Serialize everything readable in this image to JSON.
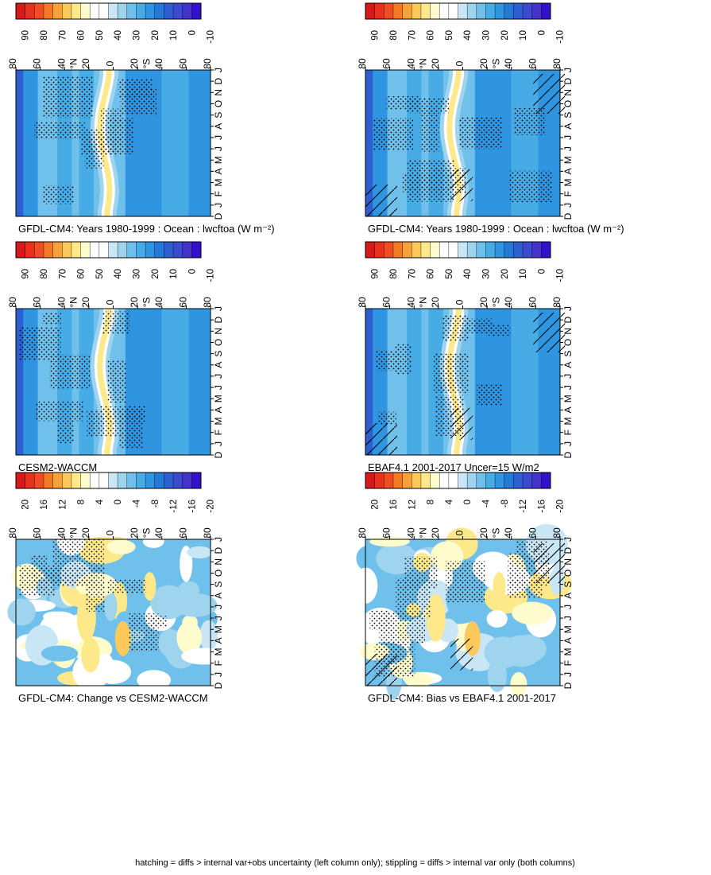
{
  "footer_caption": "hatching = diffs > internal var+obs uncertainty (left column only); stippling = diffs > internal var only (both columns)",
  "chart_data": [
    {
      "type": "heatmap",
      "title": "GFDL-CM4: Years 1980-1999 : Ocean : lwcftoa (W m⁻²)",
      "kind": "clim",
      "x_ticks": [
        "D",
        "J",
        "F",
        "M",
        "A",
        "M",
        "J",
        "J",
        "A",
        "S",
        "O",
        "N",
        "D",
        "J"
      ],
      "y_ticks": [
        "80",
        "60",
        "40",
        "20",
        "0",
        "20",
        "40",
        "60",
        "80"
      ],
      "y_hemi": [
        "°N",
        "°S"
      ],
      "colorbar": {
        "labels": [
          "90",
          "80",
          "70",
          "60",
          "50",
          "40",
          "30",
          "20",
          "10",
          "0",
          "-10"
        ],
        "colors": [
          "#d7191c",
          "#e8301f",
          "#f04d22",
          "#f57a26",
          "#f9a23a",
          "#fcc95a",
          "#fde98a",
          "#fefbcd",
          "#ffffff",
          "#ffffff",
          "#c8e6f5",
          "#9fd4ef",
          "#6fc0ea",
          "#47ace6",
          "#2f95e0",
          "#2478d6",
          "#2d5fd0",
          "#3b4ad0",
          "#4433c8",
          "#3311cc"
        ]
      },
      "stipple": true,
      "hatch": true
    },
    {
      "type": "heatmap",
      "title": "GFDL-CM4: Years 1980-1999 : Ocean : lwcftoa (W m⁻²)",
      "kind": "clim",
      "x_ticks": [
        "D",
        "J",
        "F",
        "M",
        "A",
        "M",
        "J",
        "J",
        "A",
        "S",
        "O",
        "N",
        "D",
        "J"
      ],
      "y_ticks": [
        "80",
        "60",
        "40",
        "20",
        "0",
        "20",
        "40",
        "60",
        "80"
      ],
      "y_hemi": [
        "°N",
        "°S"
      ],
      "colorbar": {
        "labels": [
          "90",
          "80",
          "70",
          "60",
          "50",
          "40",
          "30",
          "20",
          "10",
          "0",
          "-10"
        ],
        "colors": [
          "#d7191c",
          "#e8301f",
          "#f04d22",
          "#f57a26",
          "#f9a23a",
          "#fcc95a",
          "#fde98a",
          "#fefbcd",
          "#ffffff",
          "#ffffff",
          "#c8e6f5",
          "#9fd4ef",
          "#6fc0ea",
          "#47ace6",
          "#2f95e0",
          "#2478d6",
          "#2d5fd0",
          "#3b4ad0",
          "#4433c8",
          "#3311cc"
        ]
      },
      "stipple": true,
      "hatch": false
    },
    {
      "type": "heatmap",
      "title": "EBAF4.1 2001-2017 Uncer=15 W/m2",
      "kind": "clim",
      "x_ticks": [
        "D",
        "J",
        "F",
        "M",
        "A",
        "M",
        "J",
        "J",
        "A",
        "S",
        "O",
        "N",
        "D",
        "J"
      ],
      "y_ticks": [
        "80",
        "60",
        "40",
        "20",
        "0",
        "20",
        "40",
        "60",
        "80"
      ],
      "y_hemi": [
        "°N",
        "°S"
      ],
      "colorbar": {
        "labels": [
          "90",
          "80",
          "70",
          "60",
          "50",
          "40",
          "30",
          "20",
          "10",
          "0",
          "-10"
        ],
        "colors": [
          "#d7191c",
          "#e8301f",
          "#f04d22",
          "#f57a26",
          "#f9a23a",
          "#fcc95a",
          "#fde98a",
          "#fefbcd",
          "#ffffff",
          "#ffffff",
          "#c8e6f5",
          "#9fd4ef",
          "#6fc0ea",
          "#47ace6",
          "#2f95e0",
          "#2478d6",
          "#2d5fd0",
          "#3b4ad0",
          "#4433c8",
          "#3311cc"
        ]
      },
      "stipple": true,
      "hatch": true
    },
    {
      "type": "heatmap",
      "title": "CESM2-WACCM",
      "kind": "clim",
      "x_ticks": [
        "D",
        "J",
        "F",
        "M",
        "A",
        "M",
        "J",
        "J",
        "A",
        "S",
        "O",
        "N",
        "D",
        "J"
      ],
      "y_ticks": [
        "80",
        "60",
        "40",
        "20",
        "0",
        "20",
        "40",
        "60",
        "80"
      ],
      "y_hemi": [
        "°N",
        "°S"
      ],
      "colorbar": {
        "labels": [
          "90",
          "80",
          "70",
          "60",
          "50",
          "40",
          "30",
          "20",
          "10",
          "0",
          "-10"
        ],
        "colors": [
          "#d7191c",
          "#e8301f",
          "#f04d22",
          "#f57a26",
          "#f9a23a",
          "#fcc95a",
          "#fde98a",
          "#fefbcd",
          "#ffffff",
          "#ffffff",
          "#c8e6f5",
          "#9fd4ef",
          "#6fc0ea",
          "#47ace6",
          "#2f95e0",
          "#2478d6",
          "#2d5fd0",
          "#3b4ad0",
          "#4433c8",
          "#3311cc"
        ]
      },
      "stipple": true,
      "hatch": false
    },
    {
      "type": "heatmap",
      "title": "GFDL-CM4: Bias vs EBAF4.1 2001-2017",
      "kind": "diff",
      "x_ticks": [
        "D",
        "J",
        "F",
        "M",
        "A",
        "M",
        "J",
        "J",
        "A",
        "S",
        "O",
        "N",
        "D",
        "J"
      ],
      "y_ticks": [
        "80",
        "60",
        "40",
        "20",
        "0",
        "20",
        "40",
        "60",
        "80"
      ],
      "y_hemi": [
        "°N",
        "°S"
      ],
      "colorbar": {
        "labels": [
          "20",
          "16",
          "12",
          "8",
          "4",
          "0",
          "-4",
          "-8",
          "-12",
          "-16",
          "-20"
        ],
        "colors": [
          "#d7191c",
          "#e8301f",
          "#f04d22",
          "#f57a26",
          "#f9a23a",
          "#fcc95a",
          "#fde98a",
          "#fefbcd",
          "#ffffff",
          "#ffffff",
          "#c8e6f5",
          "#9fd4ef",
          "#6fc0ea",
          "#47ace6",
          "#2f95e0",
          "#2478d6",
          "#2d5fd0",
          "#3b4ad0",
          "#4433c8",
          "#3311cc"
        ]
      },
      "stipple": true,
      "hatch": true
    },
    {
      "type": "heatmap",
      "title": "GFDL-CM4: Change vs CESM2-WACCM",
      "kind": "diff",
      "x_ticks": [
        "D",
        "J",
        "F",
        "M",
        "A",
        "M",
        "J",
        "J",
        "A",
        "S",
        "O",
        "N",
        "D",
        "J"
      ],
      "y_ticks": [
        "80",
        "60",
        "40",
        "20",
        "0",
        "20",
        "40",
        "60",
        "80"
      ],
      "y_hemi": [
        "°N",
        "°S"
      ],
      "colorbar": {
        "labels": [
          "20",
          "16",
          "12",
          "8",
          "4",
          "0",
          "-4",
          "-8",
          "-12",
          "-16",
          "-20"
        ],
        "colors": [
          "#d7191c",
          "#e8301f",
          "#f04d22",
          "#f57a26",
          "#f9a23a",
          "#fcc95a",
          "#fde98a",
          "#fefbcd",
          "#ffffff",
          "#ffffff",
          "#c8e6f5",
          "#9fd4ef",
          "#6fc0ea",
          "#47ace6",
          "#2f95e0",
          "#2478d6",
          "#2d5fd0",
          "#3b4ad0",
          "#4433c8",
          "#3311cc"
        ]
      },
      "stipple": true,
      "hatch": false
    }
  ]
}
